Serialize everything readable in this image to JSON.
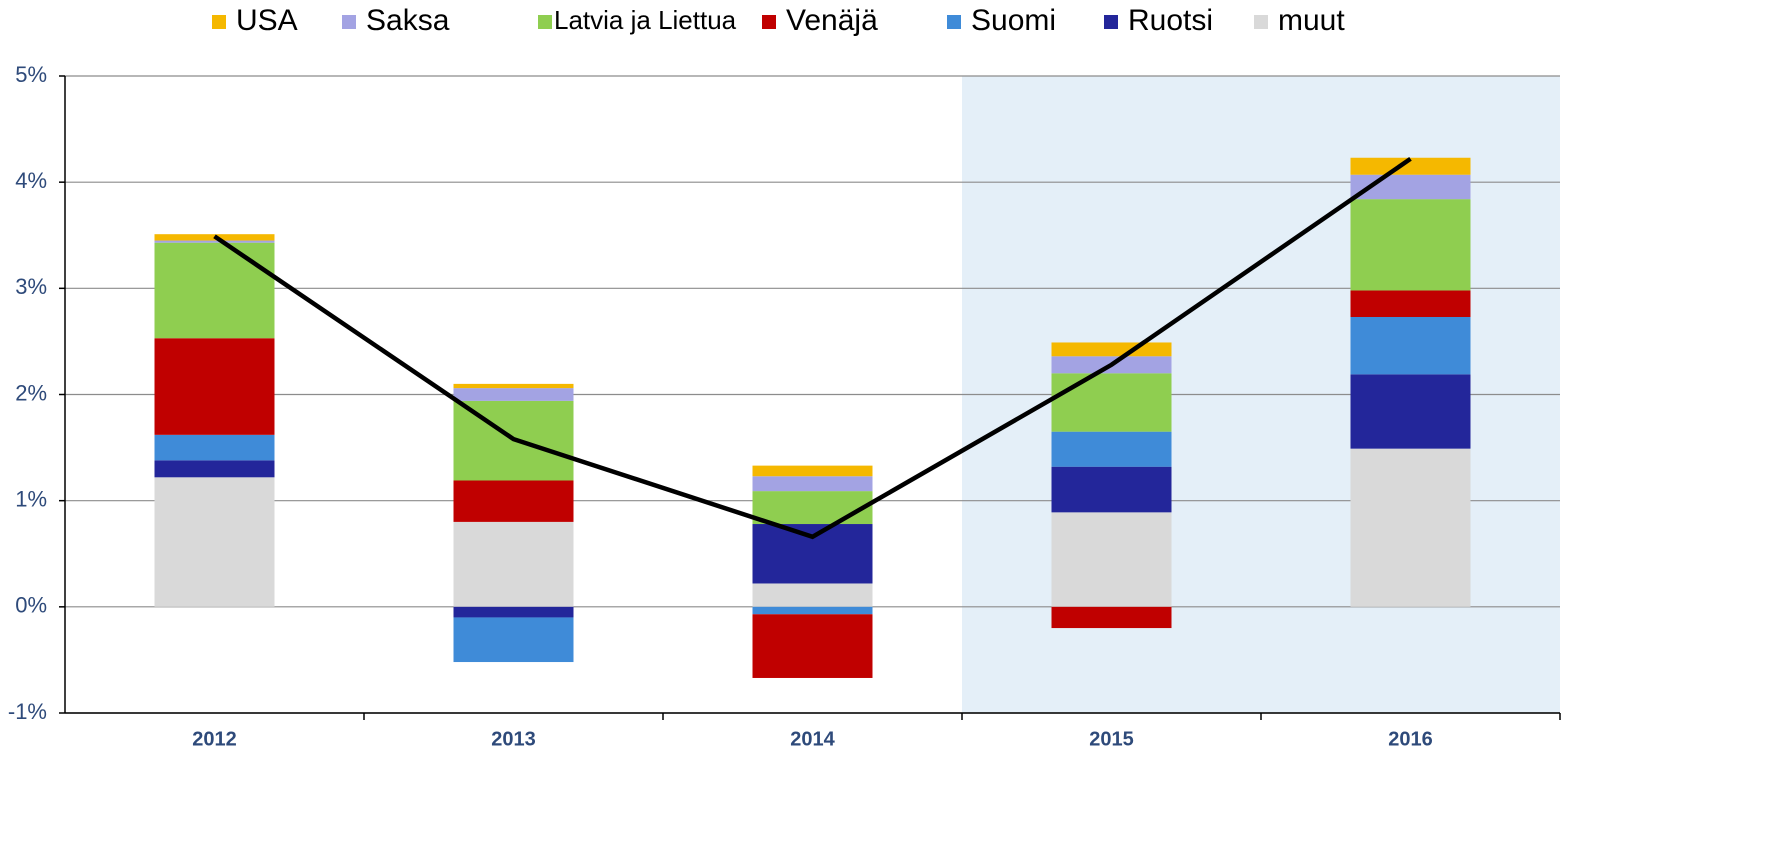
{
  "chart_data": {
    "type": "stacked_bar_line",
    "categories": [
      "2012",
      "2013",
      "2014",
      "2015",
      "2016"
    ],
    "series": [
      {
        "name": "USA",
        "color": "#f5b800",
        "values": [
          0.06,
          0.04,
          0.1,
          0.13,
          0.16
        ]
      },
      {
        "name": "Saksa",
        "color": "#a3a3e3",
        "values": [
          0.02,
          0.12,
          0.14,
          0.16,
          0.23
        ]
      },
      {
        "name": "Latvia ja Liettua",
        "color": "#8fce50",
        "values": [
          0.9,
          0.75,
          0.31,
          0.55,
          0.86
        ]
      },
      {
        "name": "Venäjä",
        "color": "#c00000",
        "values": [
          0.91,
          0.39,
          -0.6,
          -0.2,
          0.25
        ]
      },
      {
        "name": "Suomi",
        "color": "#3f8bd8",
        "values": [
          0.24,
          -0.42,
          -0.07,
          0.33,
          0.54
        ]
      },
      {
        "name": "Ruotsi",
        "color": "#23269a",
        "values": [
          0.16,
          -0.1,
          0.56,
          0.43,
          0.7
        ]
      },
      {
        "name": "muut",
        "color": "#d9d9d9",
        "values": [
          1.22,
          0.8,
          0.22,
          0.89,
          1.49
        ]
      }
    ],
    "line": {
      "color": "#000000",
      "values": [
        3.49,
        1.58,
        0.66,
        2.28,
        4.22
      ]
    },
    "highlight_categories": [
      "2015",
      "2016"
    ],
    "ylim": [
      -1,
      5
    ],
    "yticks": [
      {
        "value": -1,
        "label": "-1%"
      },
      {
        "value": 0,
        "label": "0%"
      },
      {
        "value": 1,
        "label": "1%"
      },
      {
        "value": 2,
        "label": "2%"
      },
      {
        "value": 3,
        "label": "3%"
      },
      {
        "value": 4,
        "label": "4%"
      },
      {
        "value": 5,
        "label": "5%"
      }
    ],
    "grid": true,
    "legend": "top"
  }
}
